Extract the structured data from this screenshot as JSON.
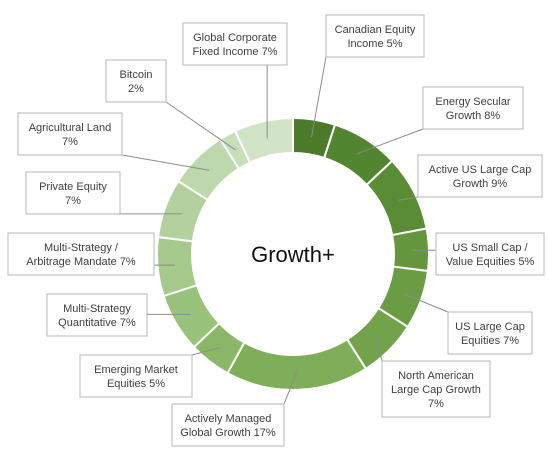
{
  "chart_data": {
    "type": "pie",
    "donut": true,
    "center_label": "Growth+",
    "series": [
      {
        "name": "",
        "values": [
          {
            "label_lines": [
              "Canadian Equity",
              "Income 5%"
            ],
            "value": 5,
            "color": "#4a7a2a"
          },
          {
            "label_lines": [
              "Energy Secular",
              "Growth 8%"
            ],
            "value": 8,
            "color": "#528530"
          },
          {
            "label_lines": [
              "Active US Large Cap",
              "Growth 9%"
            ],
            "value": 9,
            "color": "#5a8c35"
          },
          {
            "label_lines": [
              "US Small Cap /",
              "Value Equities 5%"
            ],
            "value": 5,
            "color": "#63963d"
          },
          {
            "label_lines": [
              "US Large Cap",
              "Equities 7%"
            ],
            "value": 7,
            "color": "#6a9c44"
          },
          {
            "label_lines": [
              "North American",
              "Large Cap Growth",
              "7%"
            ],
            "value": 7,
            "color": "#72a34b"
          },
          {
            "label_lines": [
              "Actively Managed",
              "Global Growth 17%"
            ],
            "value": 17,
            "color": "#7eaf58"
          },
          {
            "label_lines": [
              "Emerging Market",
              "Equities 5%"
            ],
            "value": 5,
            "color": "#8bb868"
          },
          {
            "label_lines": [
              "Multi-Strategy",
              "Quantitative 7%"
            ],
            "value": 7,
            "color": "#99c27a"
          },
          {
            "label_lines": [
              "Multi-Strategy /",
              "Arbitrage Mandate 7%"
            ],
            "value": 7,
            "color": "#a6ca8c"
          },
          {
            "label_lines": [
              "Private Equity",
              "7%"
            ],
            "value": 7,
            "color": "#b2d19e"
          },
          {
            "label_lines": [
              "Agricultural Land",
              "7%"
            ],
            "value": 7,
            "color": "#bdd8ac"
          },
          {
            "label_lines": [
              "Bitcoin",
              "2%"
            ],
            "value": 2,
            "color": "#c7deba"
          },
          {
            "label_lines": [
              "Global Corporate",
              "Fixed Income 7%"
            ],
            "value": 7,
            "color": "#d2e4c8"
          }
        ]
      }
    ],
    "legend": "none",
    "label_style": "callouts"
  }
}
